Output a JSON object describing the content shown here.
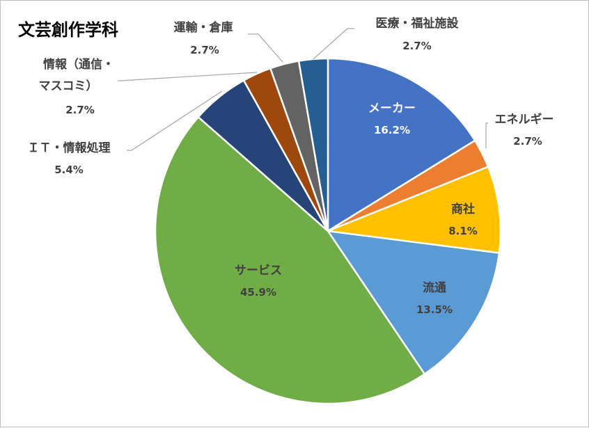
{
  "chart_data": {
    "type": "pie",
    "title": "文芸創作学科",
    "start_angle_deg": 0,
    "direction": "clockwise",
    "slices": [
      {
        "name": "メーカー",
        "value": 16.2,
        "label": "16.2%",
        "color": "#4472C4",
        "text_color": "#ffffff",
        "label_pos": "inside"
      },
      {
        "name": "エネルギー",
        "value": 2.7,
        "label": "2.7%",
        "color": "#ED7D31",
        "text_color": "#404040",
        "label_pos": "outside"
      },
      {
        "name": "商社",
        "value": 8.1,
        "label": "8.1%",
        "color": "#FFC000",
        "text_color": "#404040",
        "label_pos": "inside"
      },
      {
        "name": "流通",
        "value": 13.5,
        "label": "13.5%",
        "color": "#5B9BD5",
        "text_color": "#404040",
        "label_pos": "inside"
      },
      {
        "name": "サービス",
        "value": 45.9,
        "label": "45.9%",
        "color": "#70AD47",
        "text_color": "#404040",
        "label_pos": "inside"
      },
      {
        "name": "ＩＴ・情報処理",
        "value": 5.4,
        "label": "5.4%",
        "color": "#264478",
        "text_color": "#404040",
        "label_pos": "outside"
      },
      {
        "name": "情報（通信・マスコミ）",
        "value": 2.7,
        "label": "2.7%",
        "color": "#9E480E",
        "text_color": "#404040",
        "label_pos": "outside"
      },
      {
        "name": "運輸・倉庫",
        "value": 2.7,
        "label": "2.7%",
        "color": "#636363",
        "text_color": "#404040",
        "label_pos": "outside"
      },
      {
        "name": "医療・福祉施設",
        "value": 2.7,
        "label": "2.7%",
        "color": "#255E91",
        "text_color": "#404040",
        "label_pos": "outside"
      }
    ]
  }
}
